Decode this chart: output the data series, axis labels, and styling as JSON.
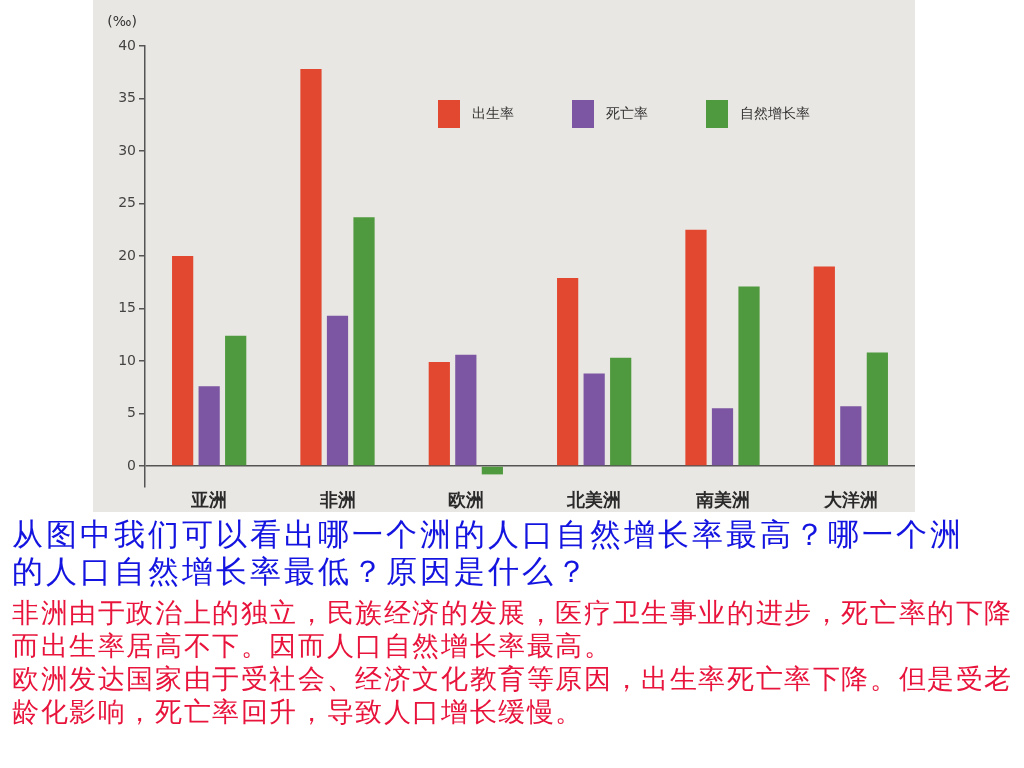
{
  "chart_data": {
    "type": "bar",
    "ylabel": "(‰)",
    "categories": [
      "亚洲",
      "非洲",
      "欧洲",
      "北美洲",
      "南美洲",
      "大洋洲"
    ],
    "series": [
      {
        "name": "出生率",
        "color": "#e2472f",
        "values": [
          20,
          37.8,
          9.9,
          17.9,
          22.5,
          19
        ]
      },
      {
        "name": "死亡率",
        "color": "#7d56a3",
        "values": [
          7.6,
          14.3,
          10.6,
          8.8,
          5.5,
          5.7
        ]
      },
      {
        "name": "自然增长率",
        "color": "#4f9a3e",
        "values": [
          12.4,
          23.7,
          -0.8,
          10.3,
          17.1,
          10.8
        ]
      }
    ],
    "ylim": [
      -2,
      40
    ],
    "yticks": [
      0,
      5,
      10,
      15,
      20,
      25,
      30,
      35,
      40
    ],
    "legend": "top right",
    "annotations": [
      "从图中我们可以看出哪一个洲的人口自然增长率最高？哪一个洲的人口自然增长率最低？原因是什么？",
      "非洲由于政治上的独立，民族经济的发展，医疗卫生事业的进步，死亡率的下降而出生率居高不下。因而人口自然增长率最高。",
      "欧洲发达国家由于受社会、经济文化教育等原因，出生率死亡率下降。但是受老龄化影响，死亡率回升，导致人口增长缓慢。"
    ]
  }
}
